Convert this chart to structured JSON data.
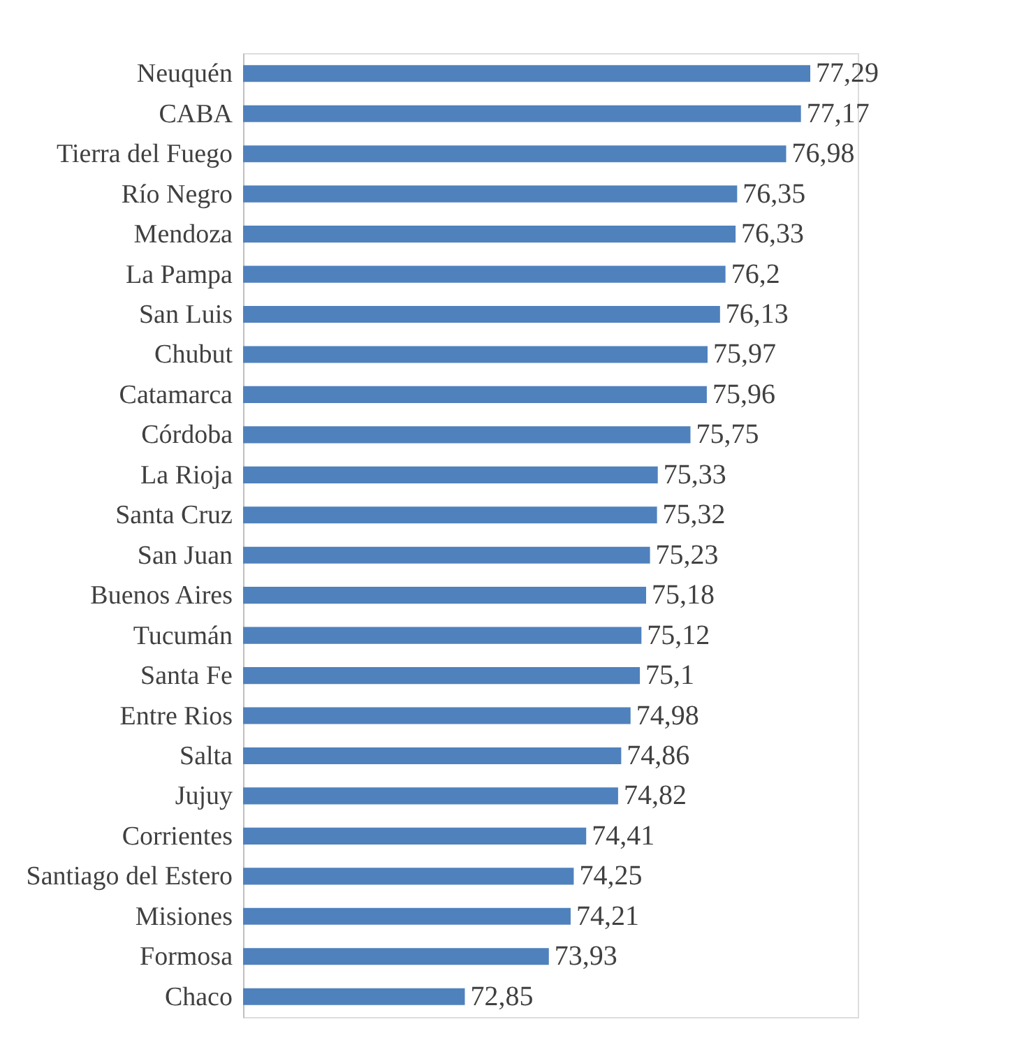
{
  "chart_data": {
    "type": "bar",
    "orientation": "horizontal",
    "categories": [
      "Neuquén",
      "CABA",
      "Tierra del Fuego",
      "Río Negro",
      "Mendoza",
      "La Pampa",
      "San Luis",
      "Chubut",
      "Catamarca",
      "Córdoba",
      "La Rioja",
      "Santa Cruz",
      "San Juan",
      "Buenos Aires",
      "Tucumán",
      "Santa Fe",
      "Entre Rios",
      "Salta",
      "Jujuy",
      "Corrientes",
      "Santiago del Estero",
      "Misiones",
      "Formosa",
      "Chaco"
    ],
    "values": [
      77.29,
      77.17,
      76.98,
      76.35,
      76.33,
      76.2,
      76.13,
      75.97,
      75.96,
      75.75,
      75.33,
      75.32,
      75.23,
      75.18,
      75.12,
      75.1,
      74.98,
      74.86,
      74.82,
      74.41,
      74.25,
      74.21,
      73.93,
      72.85
    ],
    "value_labels": [
      "77,29",
      "77,17",
      "76,98",
      "76,35",
      "76,33",
      "76,2",
      "76,13",
      "75,97",
      "75,96",
      "75,75",
      "75,33",
      "75,32",
      "75,23",
      "75,18",
      "75,12",
      "75,1",
      "74,98",
      "74,86",
      "74,82",
      "74,41",
      "74,25",
      "74,21",
      "73,93",
      "72,85"
    ],
    "color": "#4f81bd",
    "xlim": [
      70,
      77.9
    ],
    "tick_labels": "y",
    "grid": false
  }
}
